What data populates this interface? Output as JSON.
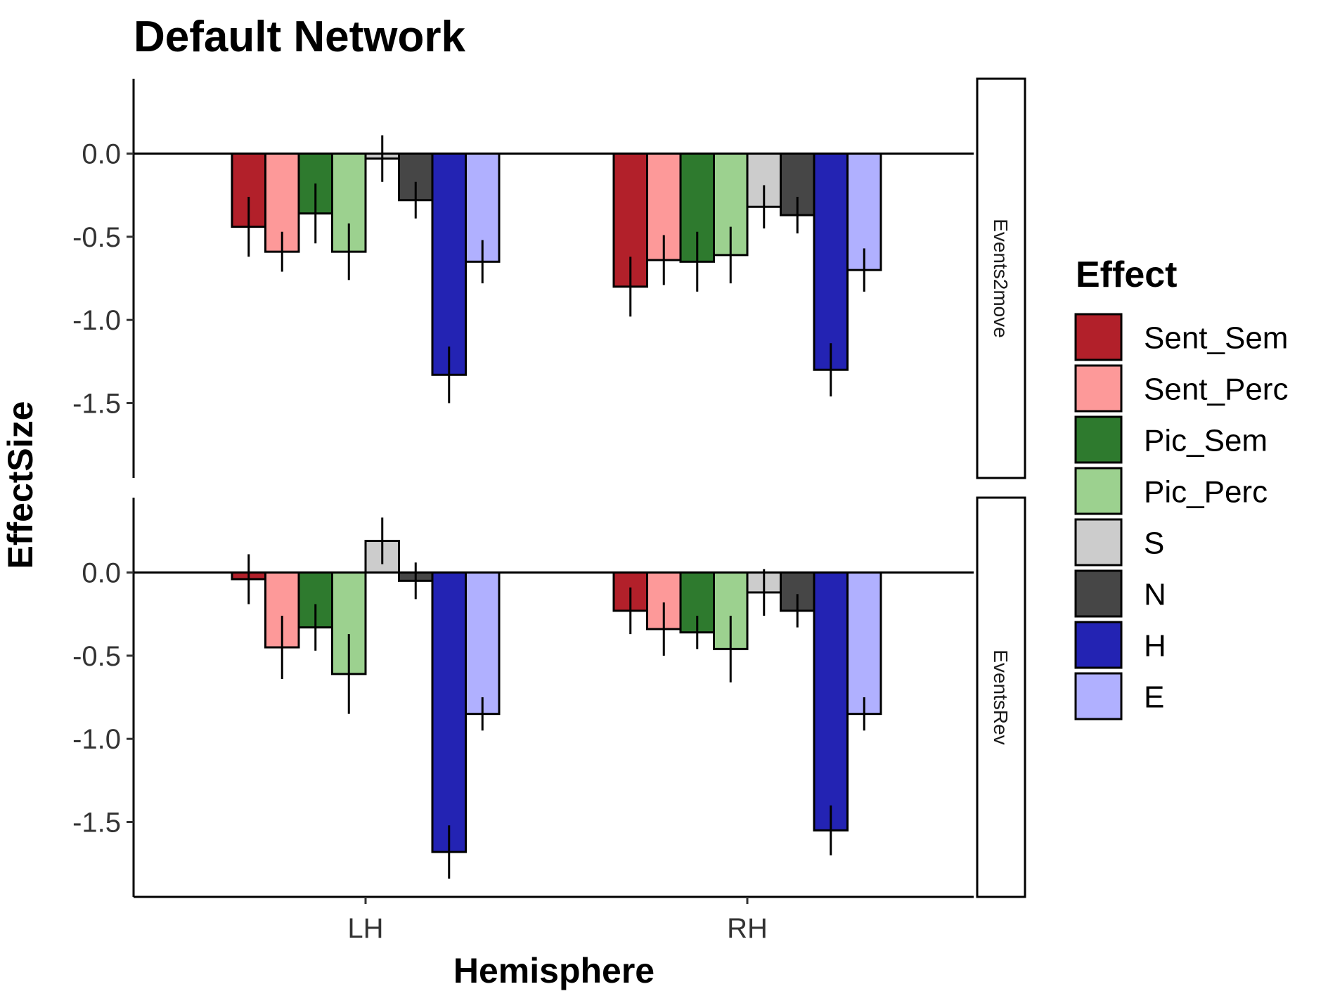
{
  "chart_data": {
    "type": "bar",
    "title": "Default Network",
    "xlabel": "Hemisphere",
    "ylabel": "EffectSize",
    "categories": [
      "LH",
      "RH"
    ],
    "ylim": [
      -1.95,
      0.45
    ],
    "yticks": [
      0.0,
      -0.5,
      -1.0,
      -1.5
    ],
    "ytick_labels": [
      "0.0",
      "-0.5",
      "-1.0",
      "-1.5"
    ],
    "grid": false,
    "legend": {
      "title": "Effect",
      "position": "right",
      "entries": [
        "Sent_Sem",
        "Sent_Perc",
        "Pic_Sem",
        "Pic_Perc",
        "S",
        "N",
        "H",
        "E"
      ]
    },
    "series_colors": {
      "Sent_Sem": "#B2202A",
      "Sent_Perc": "#FD9999",
      "Pic_Sem": "#2E7A2E",
      "Pic_Perc": "#9CD18F",
      "S": "#CCCCCC",
      "N": "#464646",
      "H": "#2323B3",
      "E": "#B0B0FF"
    },
    "panels": [
      {
        "label": "Events2move",
        "series": [
          {
            "name": "Sent_Sem",
            "values": [
              -0.44,
              -0.8
            ],
            "error": [
              0.18,
              0.18
            ]
          },
          {
            "name": "Sent_Perc",
            "values": [
              -0.59,
              -0.64
            ],
            "error": [
              0.12,
              0.15
            ]
          },
          {
            "name": "Pic_Sem",
            "values": [
              -0.36,
              -0.65
            ],
            "error": [
              0.18,
              0.18
            ]
          },
          {
            "name": "Pic_Perc",
            "values": [
              -0.59,
              -0.61
            ],
            "error": [
              0.17,
              0.17
            ]
          },
          {
            "name": "S",
            "values": [
              -0.03,
              -0.32
            ],
            "error": [
              0.14,
              0.13
            ]
          },
          {
            "name": "N",
            "values": [
              -0.28,
              -0.37
            ],
            "error": [
              0.11,
              0.11
            ]
          },
          {
            "name": "H",
            "values": [
              -1.33,
              -1.3
            ],
            "error": [
              0.17,
              0.16
            ]
          },
          {
            "name": "E",
            "values": [
              -0.65,
              -0.7
            ],
            "error": [
              0.13,
              0.13
            ]
          }
        ]
      },
      {
        "label": "EventsRev",
        "series": [
          {
            "name": "Sent_Sem",
            "values": [
              -0.04,
              -0.23
            ],
            "error": [
              0.15,
              0.14
            ]
          },
          {
            "name": "Sent_Perc",
            "values": [
              -0.45,
              -0.34
            ],
            "error": [
              0.19,
              0.16
            ]
          },
          {
            "name": "Pic_Sem",
            "values": [
              -0.33,
              -0.36
            ],
            "error": [
              0.14,
              0.1
            ]
          },
          {
            "name": "Pic_Perc",
            "values": [
              -0.61,
              -0.46
            ],
            "error": [
              0.24,
              0.2
            ]
          },
          {
            "name": "S",
            "values": [
              0.19,
              -0.12
            ],
            "error": [
              0.14,
              0.14
            ]
          },
          {
            "name": "N",
            "values": [
              -0.05,
              -0.23
            ],
            "error": [
              0.11,
              0.1
            ]
          },
          {
            "name": "H",
            "values": [
              -1.68,
              -1.55
            ],
            "error": [
              0.16,
              0.15
            ]
          },
          {
            "name": "E",
            "values": [
              -0.85,
              -0.85
            ],
            "error": [
              0.1,
              0.1
            ]
          }
        ]
      }
    ]
  }
}
